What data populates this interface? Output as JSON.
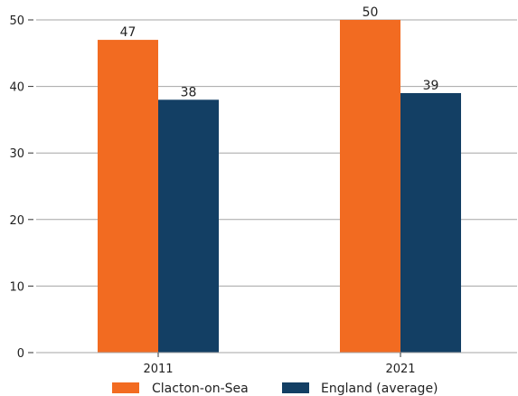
{
  "chart_data": {
    "type": "bar",
    "categories": [
      "2011",
      "2021"
    ],
    "series": [
      {
        "name": "Clacton-on-Sea",
        "values": [
          47,
          50
        ],
        "color": "#f26b21"
      },
      {
        "name": "England (average)",
        "values": [
          38,
          39
        ],
        "color": "#133f64"
      }
    ],
    "yticks": [
      "0",
      "10",
      "20",
      "30",
      "40",
      "50"
    ],
    "ylim": [
      0,
      50
    ],
    "grid": true,
    "legend_position": "bottom-center",
    "title": "",
    "xlabel": "",
    "ylabel": ""
  }
}
